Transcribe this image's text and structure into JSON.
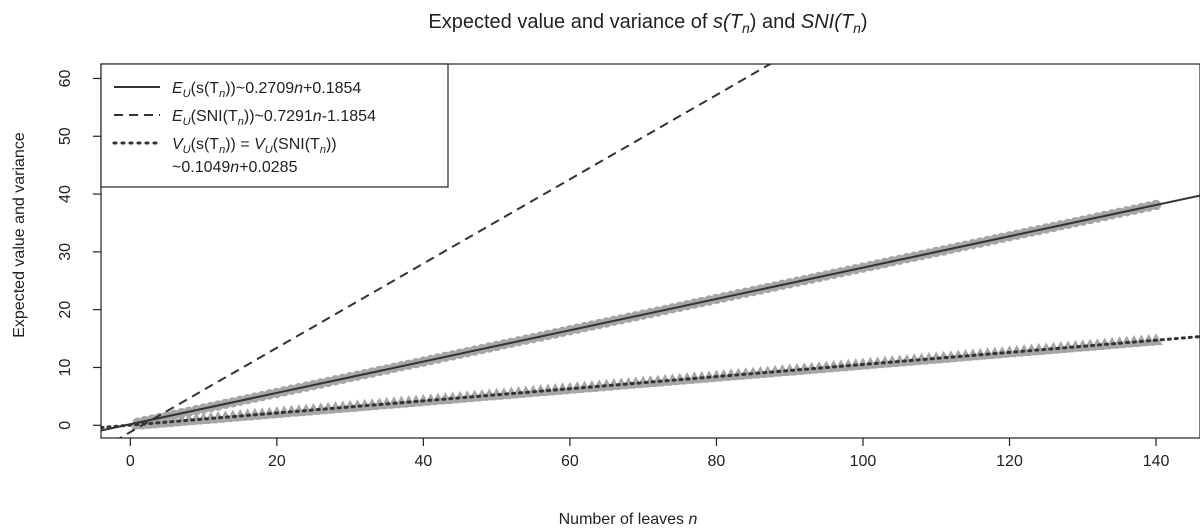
{
  "chart_data": {
    "type": "line",
    "title": "Expected value and variance of s(T_n) and SNI(T_n)",
    "title_parts": {
      "prefix": "Expected value and variance of ",
      "s_main": "s(T",
      "s_sub": "n",
      "close": ")",
      "and": " and ",
      "sni_main": "SNI(T",
      "sni_sub": "n"
    },
    "xlabel": "Number of leaves",
    "xlabel_var": "n",
    "ylabel": "Expected value and variance",
    "xlim": [
      -4,
      146
    ],
    "ylim": [
      -2.2,
      62.5
    ],
    "x_ticks": [
      0,
      20,
      40,
      60,
      80,
      100,
      120,
      140
    ],
    "y_ticks": [
      0,
      10,
      20,
      30,
      40,
      50,
      60
    ],
    "grid": false,
    "legend_position": "top-left",
    "series": [
      {
        "name": "E_U(s(T_n))~0.2709n+0.1854",
        "style": "solid",
        "slope": 0.2709,
        "intercept": 0.1854,
        "marker": "circle",
        "points_x_range": [
          1,
          140
        ]
      },
      {
        "name": "E_U(SNI(T_n))~0.7291n-1.1854",
        "style": "dashed",
        "slope": 0.7291,
        "intercept": -1.1854,
        "marker": "none"
      },
      {
        "name": "V_U(s(T_n)) = V_U(SNI(T_n)) ~0.1049n+0.0285",
        "style": "dotted",
        "slope": 0.1049,
        "intercept": 0.0285,
        "marker": "triangle",
        "points_x_range": [
          1,
          140
        ]
      }
    ]
  },
  "legend": {
    "items": [
      {
        "prefix": "E",
        "sub": "U",
        "body_a": "(s(T",
        "body_sub": "n",
        "body_b": "))~0.2709",
        "var": "n",
        "tail": "+0.1854"
      },
      {
        "prefix": "E",
        "sub": "U",
        "body_a": "(SNI(T",
        "body_sub": "n",
        "body_b": "))~0.7291",
        "var": "n",
        "tail": "-1.1854"
      },
      {
        "prefix": "V",
        "sub": "U",
        "body_a": "(s(T",
        "body_sub": "n",
        "body_b": ")) = ",
        "second_prefix": "V",
        "second_sub": "U",
        "second_body_a": "(SNI(T",
        "second_body_sub": "n",
        "second_body_b": "))"
      },
      {
        "line2_a": "~0.1049",
        "var": "n",
        "line2_b": "+0.0285"
      }
    ]
  },
  "colors": {
    "line": "#333333",
    "marker": "#a6a6a6",
    "axis": "#222222"
  }
}
